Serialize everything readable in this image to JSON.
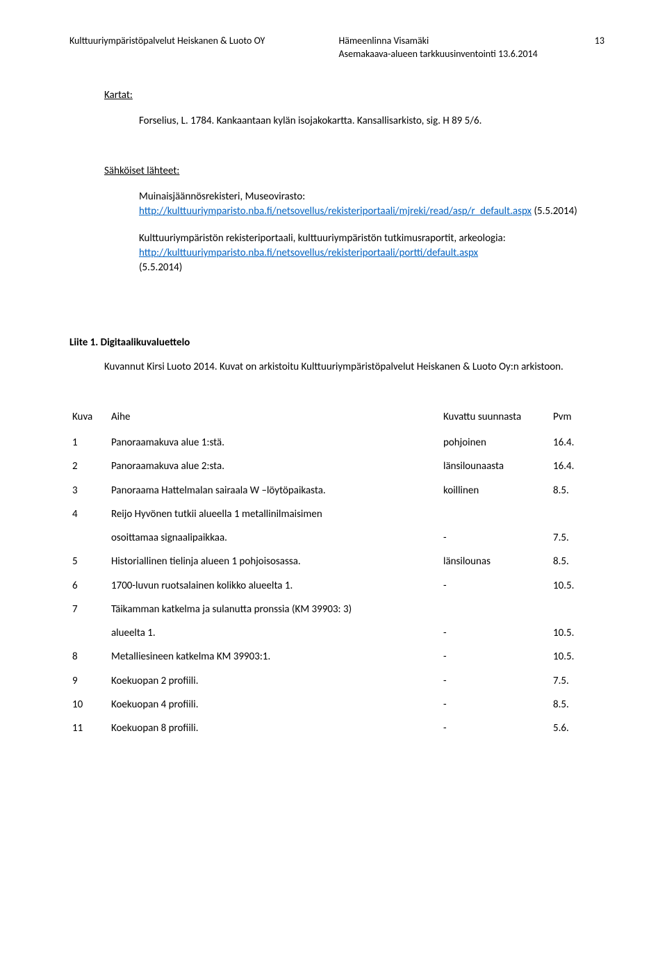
{
  "header": {
    "left": "Kulttuuriympäristöpalvelut Heiskanen & Luoto OY",
    "center_line1": "Hämeenlinna Visamäki",
    "center_line2": "Asemakaava-alueen tarkkuusinventointi     13.6.2014",
    "page_number": "13"
  },
  "kartat": {
    "heading": "Kartat:",
    "line": "Forselius, L. 1784. Kankaantaan kylän isojakokartta. Kansallisarkisto, sig. H 89 5/6."
  },
  "sahkoiset": {
    "heading": "Sähköiset lähteet:",
    "entry1_text": "Muinaisjäännösrekisteri, Museovirasto:",
    "entry1_link": "http://kulttuuriymparisto.nba.fi/netsovellus/rekisteriportaali/mjreki/read/asp/r_default.aspx",
    "entry1_date": " (5.5.2014)",
    "entry2_text": "Kulttuuriympäristön rekisteriportaali, kulttuuriympäristön tutkimusraportit, arkeologia:",
    "entry2_link": "http://kulttuuriymparisto.nba.fi/netsovellus/rekisteriportaali/portti/default.aspx",
    "entry2_date": "(5.5.2014)"
  },
  "liite": {
    "title": "Liite 1. Digitaalikuvaluettelo",
    "kuvannut": "Kuvannut Kirsi Luoto 2014. Kuvat on arkistoitu Kulttuuriympäristöpalvelut Heiskanen & Luoto Oy:n arkistoon."
  },
  "table": {
    "head": {
      "kuva": "Kuva",
      "aihe": "Aihe",
      "dir": "Kuvattu suunnasta",
      "pvm": "Pvm"
    },
    "rows": [
      {
        "n": "1",
        "aihe": "Panoraamakuva alue 1:stä.",
        "dir": "pohjoinen",
        "pvm": "16.4."
      },
      {
        "n": "2",
        "aihe": "Panoraamakuva alue 2:sta.",
        "dir": "länsilounaasta",
        "pvm": "16.4."
      },
      {
        "n": "3",
        "aihe": "Panoraama Hattelmalan sairaala W –löytöpaikasta.",
        "dir": "koillinen",
        "pvm": "8.5."
      },
      {
        "n": "4",
        "aihe": "Reijo Hyvönen tutkii alueella 1 metallinilmaisimen",
        "dir": "",
        "pvm": ""
      },
      {
        "n": "",
        "aihe": "osoittamaa signaalipaikkaa.",
        "dir": "-",
        "pvm": "7.5."
      },
      {
        "n": "5",
        "aihe": "Historiallinen tielinja alueen 1 pohjoisosassa.",
        "dir": "länsilounas",
        "pvm": "8.5."
      },
      {
        "n": "6",
        "aihe": "1700-luvun ruotsalainen kolikko alueelta 1.",
        "dir": "-",
        "pvm": "10.5."
      },
      {
        "n": "7",
        "aihe": "Täikamman katkelma ja sulanutta pronssia (KM 39903: 3)",
        "dir": "",
        "pvm": ""
      },
      {
        "n": "",
        "aihe": "alueelta 1.",
        "dir": "-",
        "pvm": "10.5."
      },
      {
        "n": "8",
        "aihe": "Metalliesineen katkelma KM 39903:1.",
        "dir": "-",
        "pvm": "10.5."
      },
      {
        "n": "9",
        "aihe": "Koekuopan 2 profiili.",
        "dir": "-",
        "pvm": "7.5."
      },
      {
        "n": "10",
        "aihe": "Koekuopan 4 profiili.",
        "dir": "-",
        "pvm": "8.5."
      },
      {
        "n": "11",
        "aihe": "Koekuopan 8 profiili.",
        "dir": "-",
        "pvm": "5.6."
      }
    ]
  }
}
